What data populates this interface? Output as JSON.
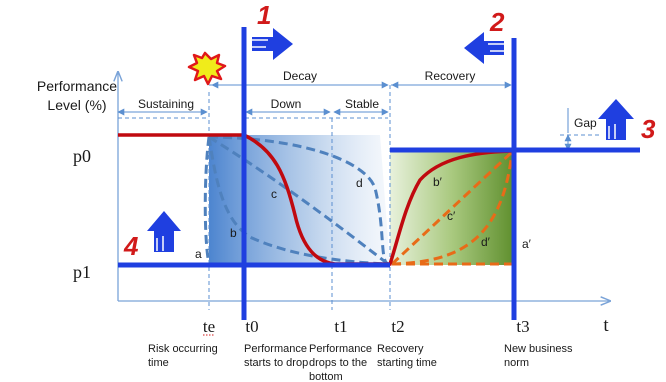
{
  "y_axis": {
    "label_line1": "Performance",
    "label_line2": "Level (%)",
    "tick_p0": "p0",
    "tick_p1": "p1"
  },
  "x_axis": {
    "label": "t",
    "ticks": [
      "te",
      "t0",
      "t1",
      "t2",
      "t3"
    ]
  },
  "x_captions": {
    "te": [
      "Risk occurring",
      "time"
    ],
    "t0": [
      "Performance",
      "starts to drop"
    ],
    "t1": [
      "Performance",
      "drops to the",
      "bottom"
    ],
    "t2": [
      "Recovery",
      "starting time"
    ],
    "t3": [
      "New business",
      "norm"
    ]
  },
  "phases": {
    "sustaining": "Sustaining",
    "decay": "Decay",
    "down": "Down",
    "stable": "Stable",
    "recovery": "Recovery",
    "gap": "Gap"
  },
  "curve_labels": {
    "a": "a",
    "b": "b",
    "c": "c",
    "d": "d",
    "a_prime": "a′",
    "b_prime": "b′",
    "c_prime": "c′",
    "d_prime": "d′"
  },
  "markers": {
    "m1": "1",
    "m2": "2",
    "m3": "3",
    "m4": "4"
  },
  "colors": {
    "axis_blue": "#1f3fe0",
    "red": "#c0090f",
    "dashed_blue": "#4f81bd",
    "orange": "#e86b18",
    "green": "#6aa33a",
    "accent_red": "#d11a1a"
  }
}
